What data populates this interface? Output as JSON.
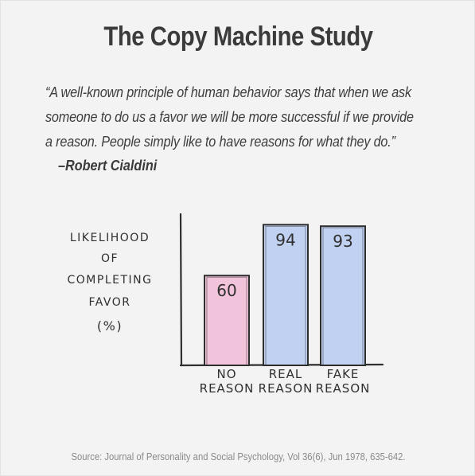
{
  "title": "The Copy Machine Study",
  "quote": {
    "lines": [
      "“A well-known principle of human behavior says that when we ask",
      "someone to do us a favor we will be more successful if we provide",
      "a reason. People simply like to have reasons for what they do.”"
    ],
    "author": "–Robert Cialdini"
  },
  "source": "Source: Journal of Personality and Social Psychology, Vol 36(6), Jun 1978, 635-642.",
  "chart_data": {
    "type": "bar",
    "ylabel_lines": [
      "LIKELIHOOD",
      "OF",
      "COMPLETING",
      "FAVOR",
      "(%)"
    ],
    "categories": [
      [
        "NO",
        "REASON"
      ],
      [
        "REAL",
        "REASON"
      ],
      [
        "FAKE",
        "REASON"
      ]
    ],
    "values": [
      60,
      94,
      93
    ],
    "ylim": [
      0,
      100
    ],
    "bar_colors": [
      "#f2c4dc",
      "#c0d1f2",
      "#c0d1f2"
    ],
    "grid": false,
    "legend": false
  }
}
